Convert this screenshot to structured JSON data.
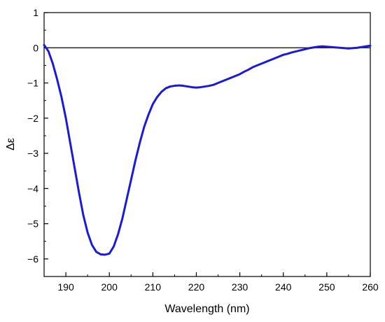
{
  "chart_data": {
    "type": "line",
    "title": "",
    "xlabel": "Wavelength (nm)",
    "ylabel": "Δε",
    "xlim": [
      185,
      260
    ],
    "ylim": [
      -6.5,
      1
    ],
    "xticks": [
      190,
      200,
      210,
      220,
      230,
      240,
      250,
      260
    ],
    "xtick_labels": [
      "190",
      "200",
      "210",
      "220",
      "230",
      "240",
      "250",
      "260"
    ],
    "yticks": [
      1,
      0,
      -1,
      -2,
      -3,
      -4,
      -5,
      -6
    ],
    "ytick_labels": [
      "1",
      "0",
      "−1",
      "−2",
      "−3",
      "−4",
      "−5",
      "−6"
    ],
    "zero_line": true,
    "grid": false,
    "legend": "none",
    "series_color": "#1a1adb",
    "series": [
      {
        "x": [
          185,
          186,
          187,
          188,
          189,
          190,
          191,
          192,
          193,
          194,
          195,
          196,
          197,
          198,
          199,
          200,
          201,
          202,
          203,
          204,
          205,
          206,
          207,
          208,
          209,
          210,
          211,
          212,
          213,
          214,
          215,
          216,
          217,
          218,
          219,
          220,
          221,
          222,
          223,
          224,
          225,
          226,
          227,
          228,
          229,
          230,
          231,
          232,
          233,
          234,
          235,
          236,
          237,
          238,
          239,
          240,
          241,
          242,
          243,
          244,
          245,
          246,
          247,
          248,
          249,
          250,
          251,
          252,
          253,
          254,
          255,
          256,
          257,
          258,
          259,
          260
        ],
        "y": [
          0.08,
          -0.1,
          -0.45,
          -0.9,
          -1.4,
          -2.0,
          -2.7,
          -3.4,
          -4.1,
          -4.75,
          -5.25,
          -5.6,
          -5.8,
          -5.87,
          -5.88,
          -5.85,
          -5.65,
          -5.3,
          -4.85,
          -4.3,
          -3.75,
          -3.2,
          -2.7,
          -2.25,
          -1.9,
          -1.6,
          -1.4,
          -1.25,
          -1.15,
          -1.1,
          -1.08,
          -1.07,
          -1.08,
          -1.1,
          -1.12,
          -1.13,
          -1.12,
          -1.1,
          -1.08,
          -1.05,
          -1.0,
          -0.95,
          -0.9,
          -0.85,
          -0.8,
          -0.75,
          -0.68,
          -0.62,
          -0.55,
          -0.5,
          -0.45,
          -0.4,
          -0.35,
          -0.3,
          -0.25,
          -0.2,
          -0.17,
          -0.13,
          -0.1,
          -0.07,
          -0.04,
          -0.01,
          0.01,
          0.03,
          0.04,
          0.03,
          0.02,
          0.01,
          0.0,
          -0.01,
          -0.02,
          -0.01,
          0.0,
          0.02,
          0.04,
          0.06
        ]
      }
    ]
  }
}
